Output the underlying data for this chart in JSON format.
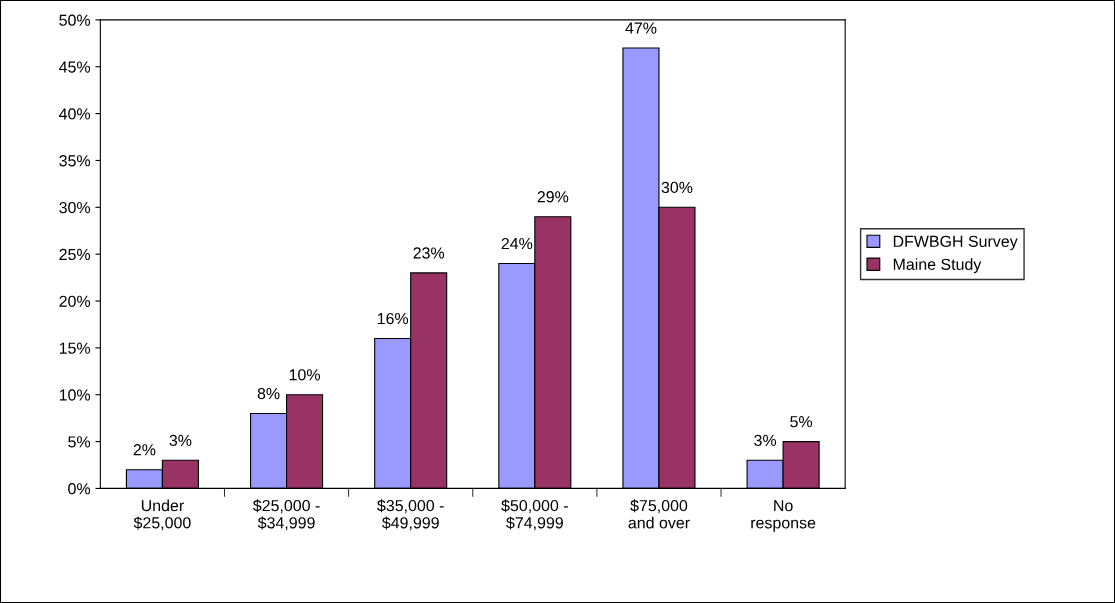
{
  "chart_data": {
    "type": "bar",
    "categories": [
      "Under\n$25,000",
      "$25,000 -\n$34,999",
      "$35,000 -\n$49,999",
      "$50,000 -\n$74,999",
      "$75,000\nand over",
      "No\nresponse"
    ],
    "series": [
      {
        "name": "DFWBGH Survey",
        "color": "#9999ff",
        "values": [
          2,
          8,
          16,
          24,
          47,
          3
        ],
        "value_labels": [
          "2%",
          "8%",
          "16%",
          "24%",
          "47%",
          "3%"
        ]
      },
      {
        "name": "Maine Study",
        "color": "#993366",
        "values": [
          3,
          10,
          23,
          29,
          30,
          5
        ],
        "value_labels": [
          "3%",
          "10%",
          "23%",
          "29%",
          "30%",
          "5%"
        ]
      }
    ],
    "ylim": [
      0,
      50
    ],
    "yticks": [
      {
        "value": 0,
        "label": "0%"
      },
      {
        "value": 5,
        "label": "5%"
      },
      {
        "value": 10,
        "label": "10%"
      },
      {
        "value": 15,
        "label": "15%"
      },
      {
        "value": 20,
        "label": "20%"
      },
      {
        "value": 25,
        "label": "25%"
      },
      {
        "value": 30,
        "label": "30%"
      },
      {
        "value": 35,
        "label": "35%"
      },
      {
        "value": 40,
        "label": "40%"
      },
      {
        "value": 45,
        "label": "45%"
      },
      {
        "value": 50,
        "label": "50%"
      }
    ],
    "grid": false,
    "legend": "right"
  }
}
